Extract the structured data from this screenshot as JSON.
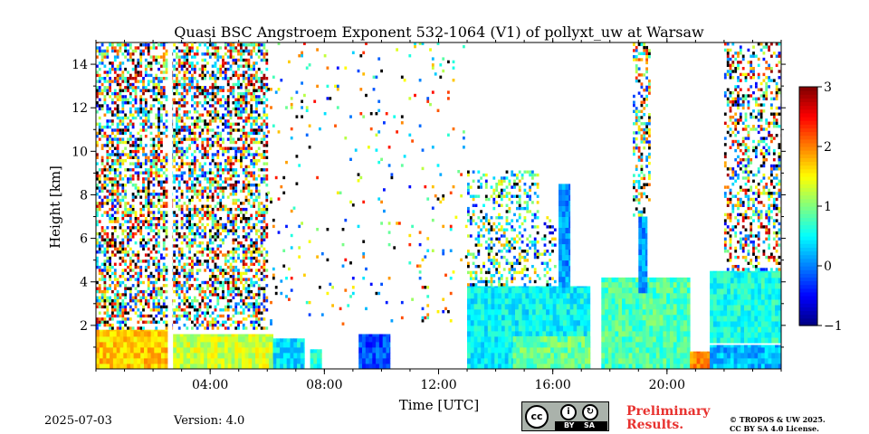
{
  "chart_data": {
    "type": "heatmap",
    "title": "Quasi BSC Angstroem Exponent 532-1064 (V1) of pollyxt_uw at Warsaw",
    "xlabel": "Time [UTC]",
    "ylabel": "Height [km]",
    "xlim": [
      0,
      24
    ],
    "ylim": [
      0,
      15
    ],
    "x_ticks": [
      {
        "value": 4,
        "label": "04:00"
      },
      {
        "value": 8,
        "label": "08:00"
      },
      {
        "value": 12,
        "label": "12:00"
      },
      {
        "value": 16,
        "label": "16:00"
      },
      {
        "value": 20,
        "label": "20:00"
      }
    ],
    "y_ticks": [
      {
        "value": 2,
        "label": "2"
      },
      {
        "value": 4,
        "label": "4"
      },
      {
        "value": 6,
        "label": "6"
      },
      {
        "value": 8,
        "label": "8"
      },
      {
        "value": 10,
        "label": "10"
      },
      {
        "value": 12,
        "label": "12"
      },
      {
        "value": 14,
        "label": "14"
      }
    ],
    "colorbar": {
      "range": [
        -1,
        3
      ],
      "ticks": [
        {
          "value": -1,
          "label": "−1"
        },
        {
          "value": 0,
          "label": "0"
        },
        {
          "value": 1,
          "label": "1"
        },
        {
          "value": 2,
          "label": "2"
        },
        {
          "value": 3,
          "label": "3"
        }
      ],
      "colormap": "jet"
    },
    "regions": [
      {
        "t0": 0,
        "t1": 2.5,
        "h0": 0,
        "h1": 1.8,
        "value": 1.7
      },
      {
        "t0": 2.7,
        "t1": 6.2,
        "h0": 0,
        "h1": 1.6,
        "value": 1.3
      },
      {
        "t0": 6.2,
        "t1": 7.3,
        "h0": 0,
        "h1": 1.4,
        "value": 0.4
      },
      {
        "t0": 7.5,
        "t1": 7.9,
        "h0": 0,
        "h1": 0.9,
        "value": 0.6
      },
      {
        "t0": 9.2,
        "t1": 10.3,
        "h0": 0,
        "h1": 1.6,
        "value": -0.2
      },
      {
        "t0": 13,
        "t1": 17.3,
        "h0": 0,
        "h1": 3.8,
        "value": 0.5
      },
      {
        "t0": 14.6,
        "t1": 17.3,
        "h0": 0,
        "h1": 1.5,
        "value": 0.9
      },
      {
        "t0": 17.7,
        "t1": 20.8,
        "h0": 0,
        "h1": 4.2,
        "value": 0.8
      },
      {
        "t0": 16.2,
        "t1": 16.6,
        "h0": 3.5,
        "h1": 8.5,
        "value": 0.1
      },
      {
        "t0": 19,
        "t1": 19.3,
        "h0": 3.5,
        "h1": 7,
        "value": 0.1
      },
      {
        "t0": 20.8,
        "t1": 21.5,
        "h0": 0,
        "h1": 0.8,
        "value": 1.9
      },
      {
        "t0": 21.5,
        "t1": 24,
        "h0": 1.2,
        "h1": 4.5,
        "value": 0.6
      },
      {
        "t0": 21.5,
        "t1": 24,
        "h0": 0,
        "h1": 1.1,
        "value": 0.2
      }
    ],
    "noise_layers": [
      {
        "t0": 0,
        "t1": 6,
        "h0": 1.8,
        "h1": 15,
        "mean": 1.2,
        "spread": 1.8,
        "density": 0.55
      },
      {
        "t0": 6,
        "t1": 13,
        "h0": 2,
        "h1": 15,
        "mean": 1.0,
        "spread": 1.5,
        "density": 0.04
      },
      {
        "t0": 13,
        "t1": 15.5,
        "h0": 3.8,
        "h1": 9,
        "mean": 0.7,
        "spread": 1.2,
        "density": 0.35
      },
      {
        "t0": 15.5,
        "t1": 16.1,
        "h0": 3.8,
        "h1": 7,
        "mean": 0.5,
        "spread": 1.2,
        "density": 0.3
      },
      {
        "t0": 18.8,
        "t1": 19.4,
        "h0": 7,
        "h1": 15,
        "mean": 1.0,
        "spread": 1.4,
        "density": 0.45
      },
      {
        "t0": 22,
        "t1": 24,
        "h0": 4.5,
        "h1": 15,
        "mean": 1.2,
        "spread": 1.8,
        "density": 0.4
      }
    ],
    "gaps": [
      {
        "t0": 2.52,
        "t1": 2.68
      },
      {
        "t0": 17.33,
        "t1": 17.45
      },
      {
        "t0": 17.55,
        "t1": 17.62
      }
    ]
  },
  "footer": {
    "date": "2025-07-03",
    "version": "Version: 4.0",
    "license_badge": {
      "icon": "cc-by-sa-icon",
      "tags": [
        "BY",
        "SA"
      ]
    },
    "preliminary_line1": "Preliminary",
    "preliminary_line2": "Results.",
    "copyright_line1": "© TROPOS & UW 2025.",
    "copyright_line2": "CC BY SA 4.0 License."
  }
}
